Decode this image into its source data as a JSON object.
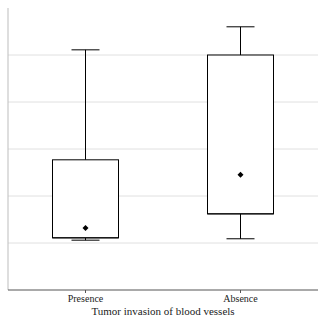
{
  "chart_data": {
    "type": "box",
    "x_label": "Tumor invasion of blood vessels",
    "categories": [
      "Presence",
      "Absence"
    ],
    "boxes": [
      {
        "min": 1.06,
        "q1": 1.11,
        "median": 1.11,
        "q3": 2.77,
        "max": 5.11,
        "mean": 1.32
      },
      {
        "min": 1.09,
        "q1": 1.62,
        "median": 1.62,
        "q3": 5.0,
        "max": 5.6,
        "mean": 2.45
      }
    ],
    "ylim": [
      0,
      6
    ],
    "yticks": [
      1,
      2,
      3,
      4,
      5
    ],
    "grid": true,
    "tick_labels": "x",
    "color": "#000000"
  }
}
